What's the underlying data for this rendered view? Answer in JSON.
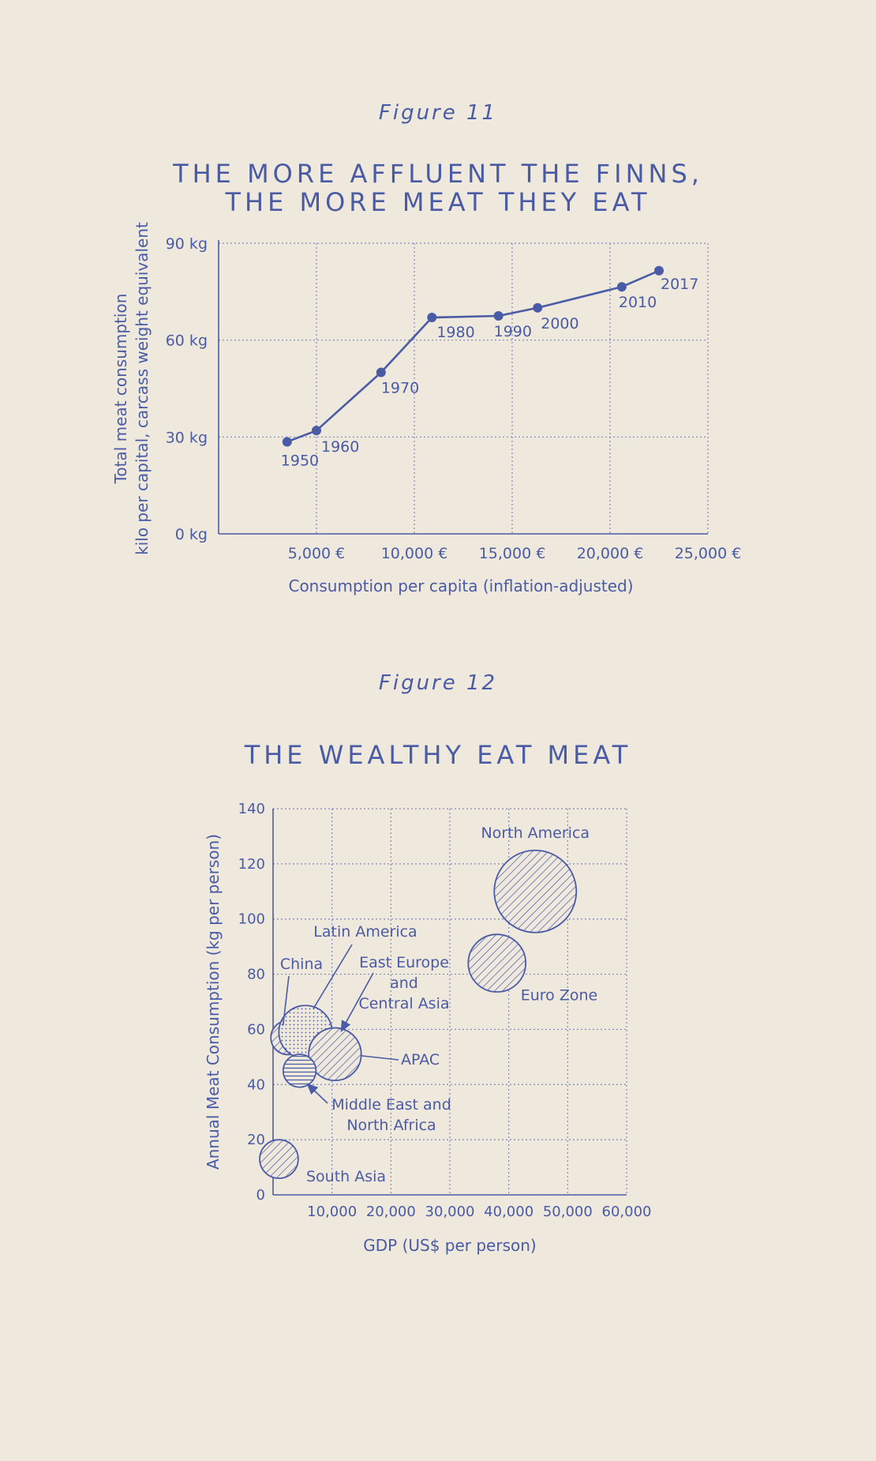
{
  "figure11": {
    "label": "Figure 11",
    "title_line1": "THE MORE AFFLUENT THE FINNS,",
    "title_line2": "THE MORE MEAT THEY EAT"
  },
  "figure12": {
    "label": "Figure 12",
    "title": "THE WEALTHY EAT MEAT"
  },
  "colors": {
    "background": "#efe8dc",
    "ink": "#4a5ba6",
    "grid": "#7f87bd"
  },
  "chart_data": [
    {
      "type": "line",
      "title": "THE MORE AFFLUENT THE FINNS, THE MORE MEAT THEY EAT",
      "xlabel": "Consumption per capita (inflation-adjusted)",
      "ylabel_line1": "Total meat consumption",
      "ylabel_line2": "kilo per capital, carcass weight equivalent",
      "xlim": [
        0,
        25000
      ],
      "ylim": [
        0,
        90
      ],
      "x_ticks": [
        5000,
        10000,
        15000,
        20000,
        25000
      ],
      "x_tick_labels": [
        "5,000 €",
        "10,000 €",
        "15,000 €",
        "20,000 €",
        "25,000 €"
      ],
      "y_ticks": [
        0,
        30,
        60,
        90
      ],
      "y_tick_labels": [
        "0 kg",
        "30 kg",
        "60 kg",
        "90 kg"
      ],
      "grid": true,
      "points": [
        {
          "label": "1950",
          "x": 3500,
          "y": 28.5
        },
        {
          "label": "1960",
          "x": 5000,
          "y": 32
        },
        {
          "label": "1970",
          "x": 8300,
          "y": 50
        },
        {
          "label": "1980",
          "x": 10900,
          "y": 67
        },
        {
          "label": "1990",
          "x": 14300,
          "y": 67.5
        },
        {
          "label": "2000",
          "x": 16300,
          "y": 70
        },
        {
          "label": "2010",
          "x": 20600,
          "y": 76.5
        },
        {
          "label": "2017",
          "x": 22500,
          "y": 81.5
        }
      ]
    },
    {
      "type": "scatter",
      "title": "THE WEALTHY EAT MEAT",
      "xlabel": "GDP (US$ per person)",
      "ylabel": "Annual Meat Consumption (kg per person)",
      "xlim": [
        0,
        60000
      ],
      "ylim": [
        0,
        140
      ],
      "x_ticks": [
        10000,
        20000,
        30000,
        40000,
        50000,
        60000
      ],
      "x_tick_labels": [
        "10,000",
        "20,000",
        "30,000",
        "40,000",
        "50,000",
        "60,000"
      ],
      "y_ticks": [
        0,
        20,
        40,
        60,
        80,
        100,
        120,
        140
      ],
      "y_tick_labels": [
        "0",
        "20",
        "40",
        "60",
        "80",
        "100",
        "120",
        "140"
      ],
      "grid": true,
      "bubbles": [
        {
          "name": "North America",
          "gdp": 44500,
          "meat": 110,
          "size": 100,
          "pattern": "hatch",
          "label_lines": [
            "North America"
          ]
        },
        {
          "name": "Euro Zone",
          "gdp": 38000,
          "meat": 84,
          "size": 49,
          "pattern": "hatch",
          "label_lines": [
            "Euro Zone"
          ]
        },
        {
          "name": "Latin America",
          "gdp": 5500,
          "meat": 59,
          "size": 42,
          "pattern": "dots",
          "label_lines": [
            "Latin America"
          ]
        },
        {
          "name": "China",
          "gdp": 2500,
          "meat": 57,
          "size": 17,
          "pattern": "hatch",
          "label_lines": [
            "China"
          ]
        },
        {
          "name": "East Europe and Central Asia",
          "gdp": 10500,
          "meat": 51,
          "size": 41,
          "pattern": "hatch",
          "label_lines": [
            "East Europe",
            "and",
            "Central Asia"
          ]
        },
        {
          "name": "APAC",
          "gdp": 10500,
          "meat": 51,
          "size": 41,
          "pattern": "hatch",
          "label_lines": [
            "APAC"
          ]
        },
        {
          "name": "Middle East and North Africa",
          "gdp": 4500,
          "meat": 45,
          "size": 16,
          "pattern": "lines",
          "label_lines": [
            "Middle East and",
            "North Africa"
          ]
        },
        {
          "name": "South Asia",
          "gdp": 1000,
          "meat": 13,
          "size": 22,
          "pattern": "hatch",
          "label_lines": [
            "South Asia"
          ]
        }
      ]
    }
  ]
}
